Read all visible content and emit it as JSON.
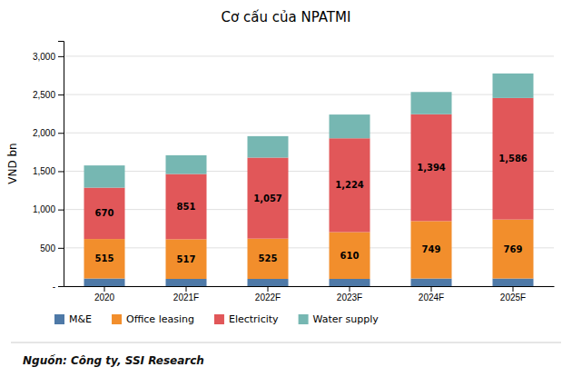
{
  "chart_data": {
    "type": "bar",
    "stacked": true,
    "title": "Cơ cấu của NPATMI",
    "ylabel": "VND bn",
    "source": "Nguồn: Công ty, SSI Research",
    "categories": [
      "2020",
      "2021F",
      "2022F",
      "2023F",
      "2024F",
      "2025F"
    ],
    "series": [
      {
        "name": "M&E",
        "values": [
          100,
          95,
          95,
          95,
          100,
          100
        ]
      },
      {
        "name": "Office leasing",
        "values": [
          515,
          517,
          525,
          610,
          749,
          769
        ],
        "data_labels": true
      },
      {
        "name": "Electricity",
        "values": [
          670,
          851,
          1057,
          1224,
          1394,
          1586
        ],
        "data_labels": true,
        "value_labels": [
          "670",
          "851",
          "1,057",
          "1,224",
          "1,394",
          "1,586"
        ]
      },
      {
        "name": "Water supply",
        "values": [
          290,
          245,
          280,
          310,
          290,
          320
        ]
      }
    ],
    "ylim": [
      0,
      3200
    ],
    "yticks": [
      {
        "value": 0,
        "label": "-"
      },
      500,
      {
        "value": 1000,
        "label": "1,000"
      },
      {
        "value": 1500,
        "label": "1,500"
      },
      {
        "value": 2000,
        "label": "2,000"
      },
      {
        "value": 2500,
        "label": "2,500"
      },
      {
        "value": 3000,
        "label": "3,000"
      }
    ],
    "grid": true,
    "legend": "bottom"
  }
}
